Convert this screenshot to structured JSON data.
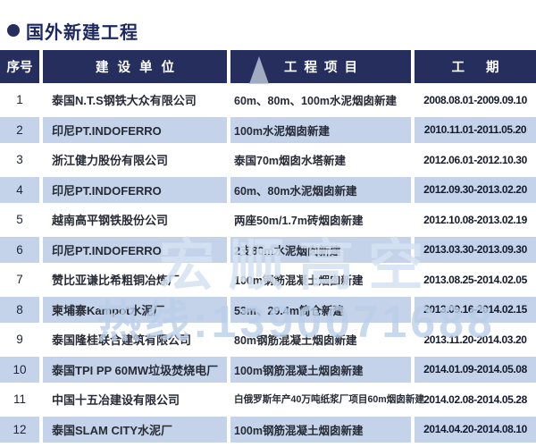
{
  "page": {
    "title": "国外新建工程",
    "accent_color": "#262e5e",
    "alt_row_color": "#c4d3e9"
  },
  "table": {
    "headers": [
      "序号",
      "建设单位",
      "工程项目",
      "工期"
    ],
    "rows": [
      {
        "no": "1",
        "company": "泰国N.T.S钢铁大众有限公司",
        "project": "60m、80m、100m水泥烟囱新建",
        "period": "2008.08.01-2009.09.10"
      },
      {
        "no": "2",
        "company": "印尼PT.INDOFERRO",
        "project": "100m水泥烟囱新建",
        "period": "2010.11.01-2011.05.20"
      },
      {
        "no": "3",
        "company": "浙江健力股份有限公司",
        "project": "泰国70m烟囱水塔新建",
        "period": "2012.06.01-2012.10.30"
      },
      {
        "no": "4",
        "company": "印尼PT.INDOFERRO",
        "project": "60m、80m水泥烟囱新建",
        "period": "2012.09.30-2013.02.20"
      },
      {
        "no": "5",
        "company": "越南高平钢铁股份公司",
        "project": "两座50m/1.7m砖烟囱新建",
        "period": "2012.10.08-2013.02.19"
      },
      {
        "no": "6",
        "company": "印尼PT.INDOFERRO",
        "project": "2支80m水泥烟囱新建",
        "period": "2013.03.30-2013.09.30"
      },
      {
        "no": "7",
        "company": "赞比亚谦比希粗铜冶炼厂",
        "project": "100m钢筋混凝土烟囱新建",
        "period": "2013.08.25-2014.02.05"
      },
      {
        "no": "8",
        "company": "柬埔寨Kampot水泥厂",
        "project": "53m、29.4m筒仓新建",
        "period": "2013.09.16-2014.02.15"
      },
      {
        "no": "9",
        "company": "泰国隆桂联合建筑有限公司",
        "project": "80m钢筋混凝土烟囱新建",
        "period": "2013.11.20-2014.03.20"
      },
      {
        "no": "10",
        "company": "泰国TPI PP 60MW垃圾焚烧电厂",
        "project": "100m钢筋混凝土烟囱新建",
        "period": "2014.01.09-2014.05.08"
      },
      {
        "no": "11",
        "company": "中国十五冶建设有限公司",
        "project": "白俄罗斯年产40万吨纸浆厂项目60m烟囱新建",
        "period": "2014.02.08-2014.05.28"
      },
      {
        "no": "12",
        "company": "泰国SLAM CITY水泥厂",
        "project": "100m钢筋混凝土烟囱新建",
        "period": "2014.04.20-2014.08.10"
      }
    ]
  },
  "watermark": {
    "line1": "宏顺高空",
    "line2": "热线:1390071688"
  }
}
